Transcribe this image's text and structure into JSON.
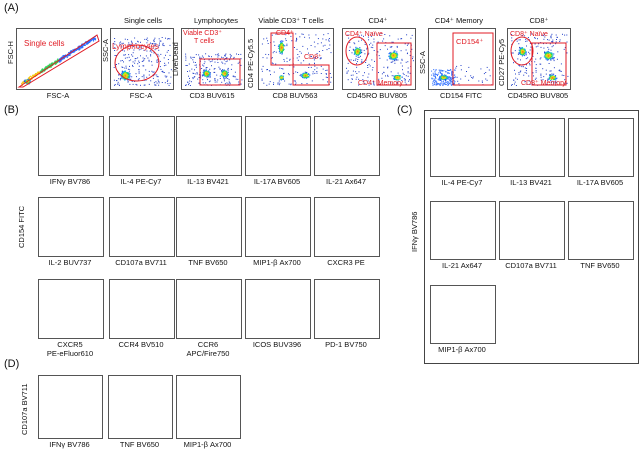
{
  "panels": {
    "A": "(A)",
    "B": "(B)",
    "C": "(C)",
    "D": "(D)"
  },
  "panelA": {
    "p1": {
      "title": "",
      "x": "FSC-A",
      "y": "FSC-H",
      "gate": "Single cells"
    },
    "p2": {
      "title": "Single cells",
      "x": "FSC-A",
      "y": "SSC-A",
      "gate": "Lymphocytes"
    },
    "p3": {
      "title": "Lymphocytes",
      "x": "CD3 BUV615",
      "y": "Live/Dead",
      "gate1": "Viable CD3⁺",
      "gate2": "T cells"
    },
    "p4": {
      "title": "Viable CD3⁺ T cells",
      "x": "CD8 BUV563",
      "y": "CD4 PE-Cy5.5",
      "gate1": "CD4⁺",
      "gate2": "CD8⁺"
    },
    "p5": {
      "title": "CD4⁺",
      "x": "CD45RO BUV805",
      "y": "CD27 PE-Cy5",
      "gate1": "CD4⁺ Naïve",
      "gate2": "CD4⁺ Memory"
    },
    "p6": {
      "title": "CD4⁺ Memory",
      "x": "CD154 FITC",
      "y": "SSC-A",
      "gate": "CD154⁺"
    },
    "p7": {
      "title": "CD8⁺",
      "x": "CD45RO BUV805",
      "y": "CD27 PE-Cy5",
      "gate1": "CD8⁺ Naïve",
      "gate2": "CD8⁺ Memory"
    }
  },
  "panelB": {
    "ylabel": "CD154 FITC",
    "labels": [
      "IFNγ BV786",
      "IL-4 PE-Cy7",
      "IL-13 BV421",
      "IL-17A BV605",
      "IL-21 Ax647",
      "IL-2 BUV737",
      "CD107a BV711",
      "TNF BV650",
      "MIP1-β Ax700",
      "CXCR3 PE",
      "CXCR5",
      "CCR4 BV510",
      "CCR6",
      "ICOS BUV396",
      "PD-1 BV750"
    ],
    "sublabels": {
      "s10": "PE-eFluor610",
      "s12": "APC/Fire750"
    }
  },
  "panelC": {
    "ylabel": "IFNγ BV786",
    "labels": [
      "IL-4 PE-Cy7",
      "IL-13 BV421",
      "IL-17A BV605",
      "IL-21 Ax647",
      "CD107a BV711",
      "TNF BV650",
      "MIP1-β Ax700"
    ]
  },
  "panelD": {
    "ylabel": "CD107a BV711",
    "labels": [
      "IFNγ BV786",
      "TNF BV650",
      "MIP1-β Ax700"
    ]
  }
}
